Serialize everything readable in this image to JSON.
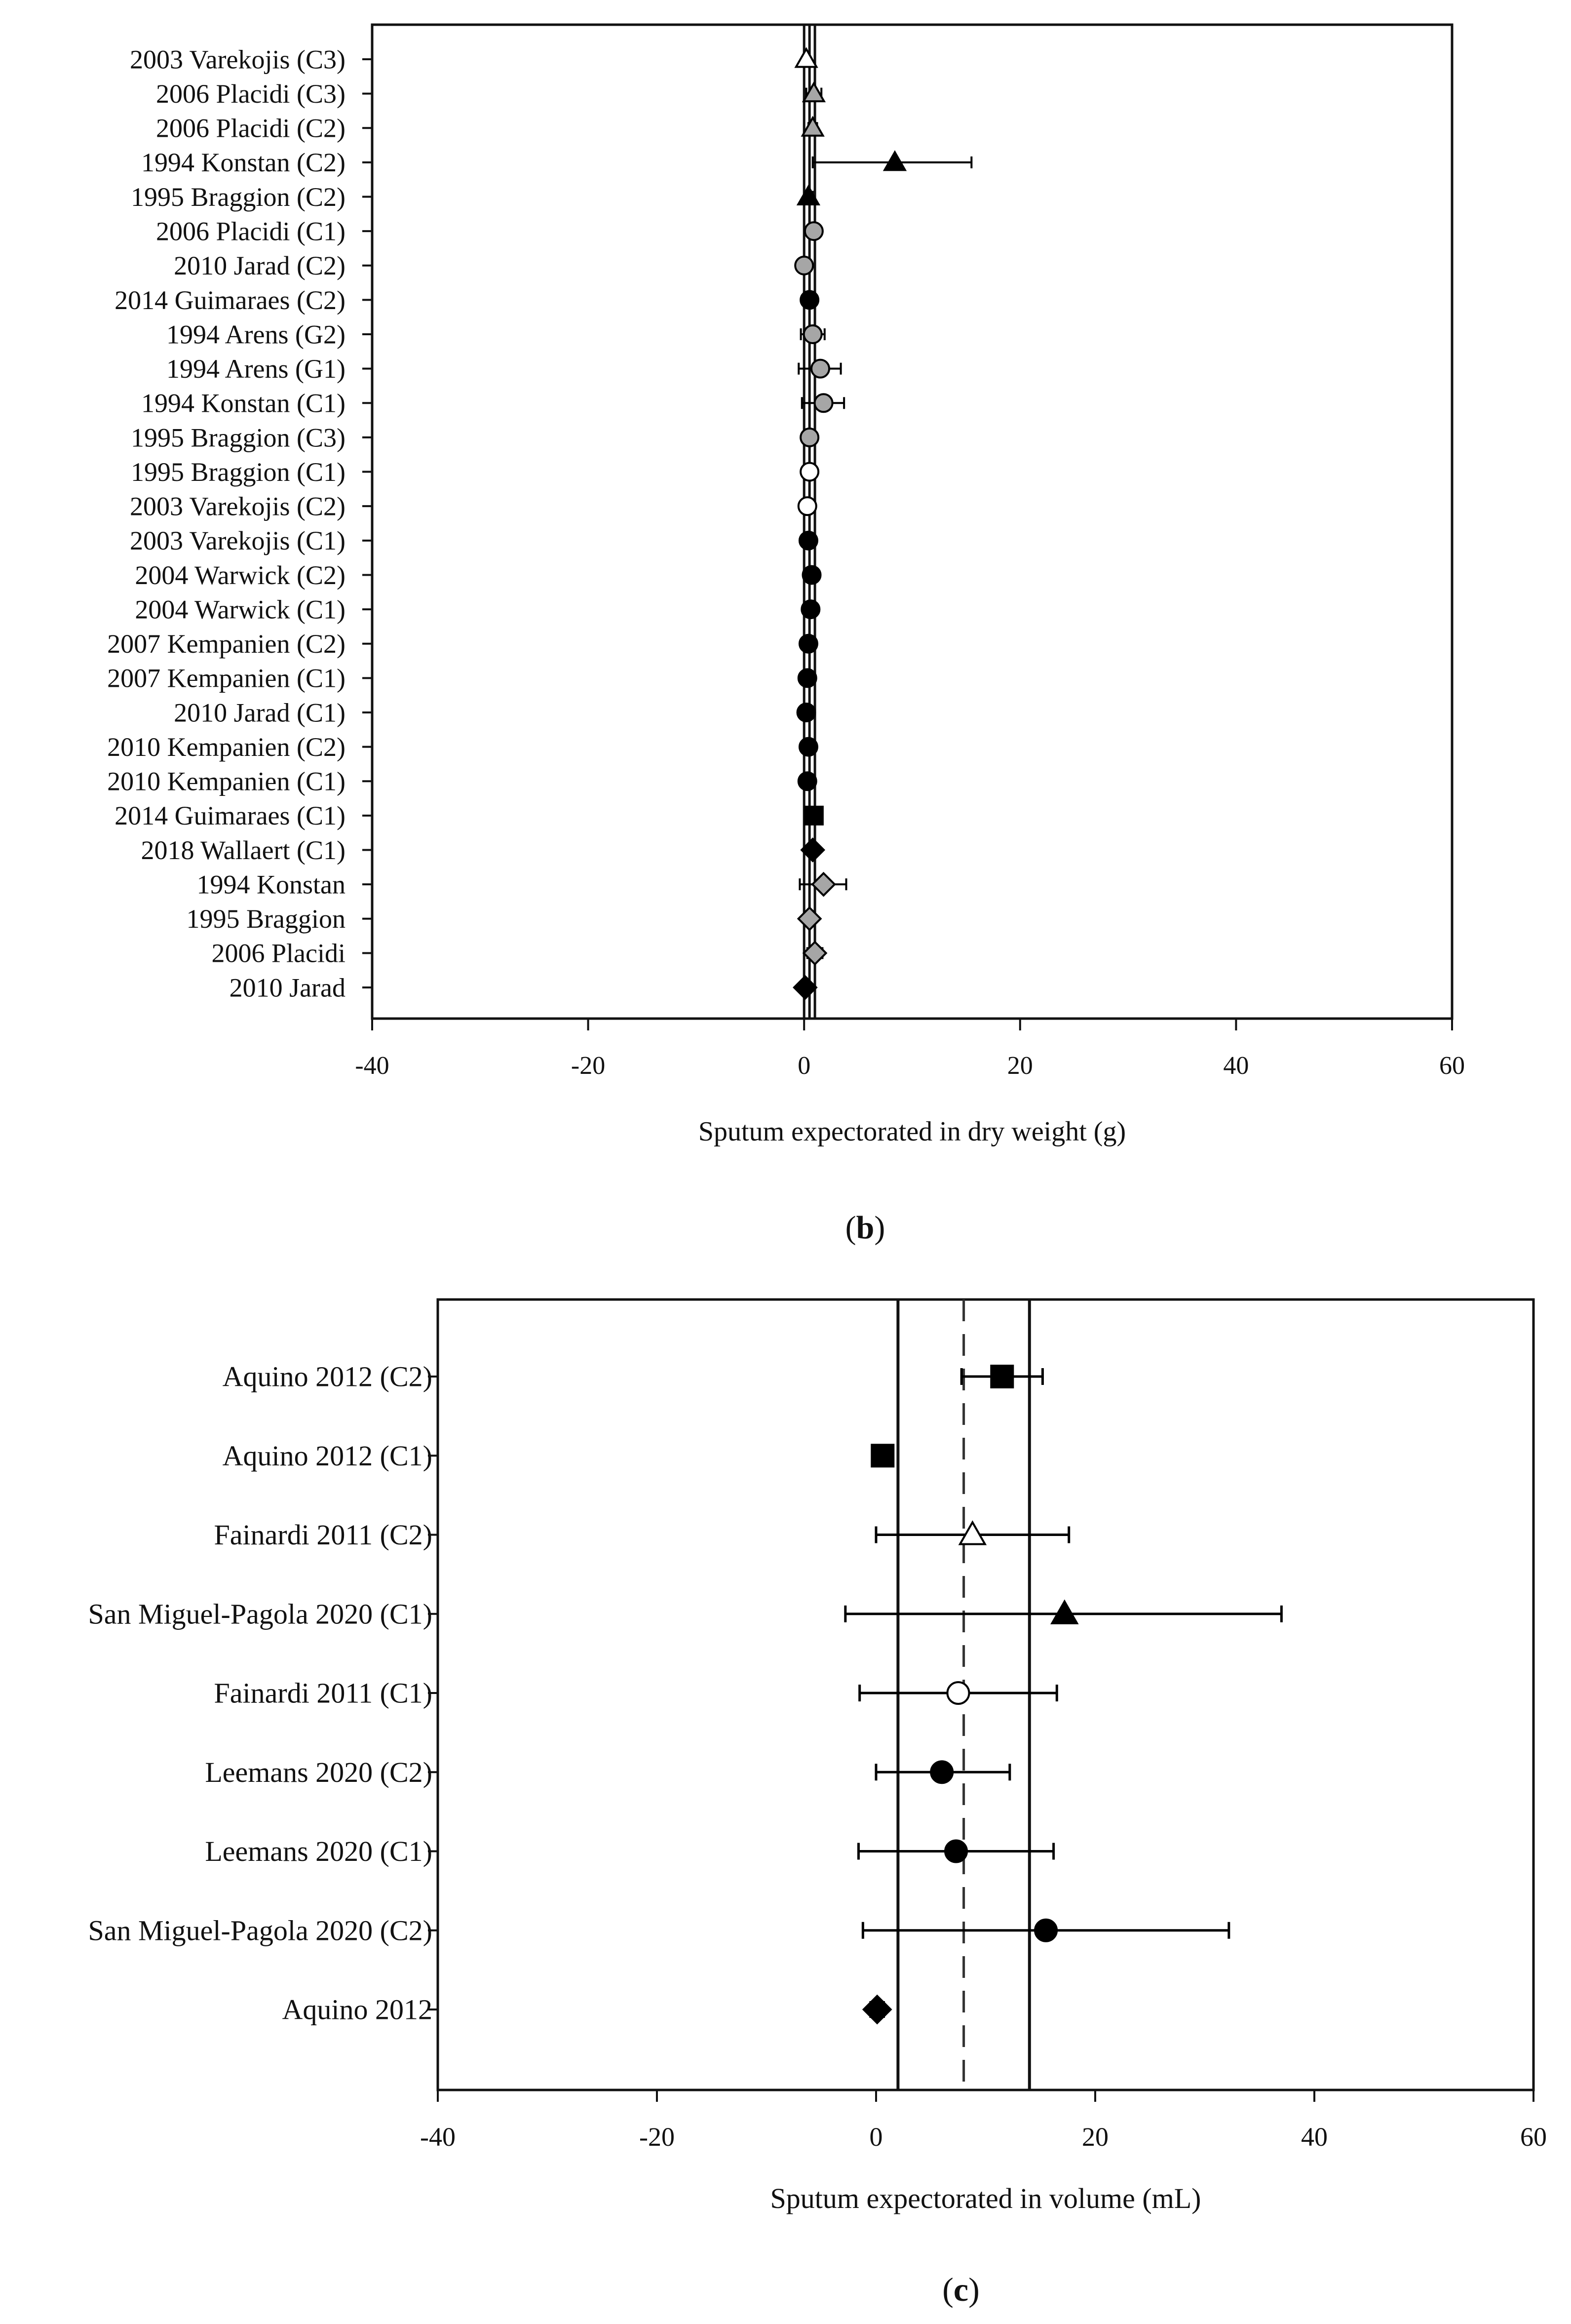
{
  "chart_data": [
    {
      "type": "forest",
      "panel": "(b)",
      "panel_letter": "b",
      "xlabel": "Sputum expectorated in dry weight (g)",
      "xlim": [
        -40,
        60
      ],
      "xticks": [
        -40,
        -20,
        0,
        20,
        40,
        60
      ],
      "reference_lines": {
        "solid": [
          0.0,
          0.5,
          1.0
        ]
      },
      "studies": [
        {
          "label": "2003 Varekojis (C3)",
          "value": 0.2,
          "ci": [
            0.0,
            0.5
          ],
          "marker": "triangle",
          "fill": "white"
        },
        {
          "label": "2006 Placidi (C3)",
          "value": 0.9,
          "ci": [
            0.2,
            1.6
          ],
          "marker": "triangle",
          "fill": "gray"
        },
        {
          "label": "2006 Placidi (C2)",
          "value": 0.8,
          "ci": [
            0.4,
            1.2
          ],
          "marker": "triangle",
          "fill": "gray"
        },
        {
          "label": "1994 Konstan (C2)",
          "value": 8.4,
          "ci": [
            0.8,
            15.5
          ],
          "marker": "triangle",
          "fill": "black"
        },
        {
          "label": "1995 Braggion (C2)",
          "value": 0.4,
          "ci": [
            0.1,
            0.8
          ],
          "marker": "triangle",
          "fill": "black"
        },
        {
          "label": "2006 Placidi (C1)",
          "value": 0.9,
          "ci": [
            0.3,
            1.5
          ],
          "marker": "circle",
          "fill": "gray"
        },
        {
          "label": "2010 Jarad (C2)",
          "value": 0.0,
          "ci": [
            -0.4,
            0.4
          ],
          "marker": "circle",
          "fill": "gray"
        },
        {
          "label": "2014 Guimaraes (C2)",
          "value": 0.5,
          "ci": [
            0.0,
            1.0
          ],
          "marker": "circle",
          "fill": "black"
        },
        {
          "label": "1994 Arens (G2)",
          "value": 0.8,
          "ci": [
            -0.3,
            1.9
          ],
          "marker": "circle",
          "fill": "gray"
        },
        {
          "label": "1994 Arens (G1)",
          "value": 1.5,
          "ci": [
            -0.5,
            3.4
          ],
          "marker": "circle",
          "fill": "gray"
        },
        {
          "label": "1994 Konstan (C1)",
          "value": 1.8,
          "ci": [
            -0.2,
            3.7
          ],
          "marker": "circle",
          "fill": "gray"
        },
        {
          "label": "1995 Braggion (C3)",
          "value": 0.5,
          "ci": [
            0.1,
            0.9
          ],
          "marker": "circle",
          "fill": "gray"
        },
        {
          "label": "1995 Braggion (C1)",
          "value": 0.5,
          "ci": [
            0.1,
            0.9
          ],
          "marker": "circle",
          "fill": "white"
        },
        {
          "label": "2003 Varekojis (C2)",
          "value": 0.3,
          "ci": [
            0.0,
            0.6
          ],
          "marker": "circle",
          "fill": "white"
        },
        {
          "label": "2003 Varekojis (C1)",
          "value": 0.4,
          "ci": [
            0.1,
            0.7
          ],
          "marker": "circle",
          "fill": "black"
        },
        {
          "label": "2004 Warwick (C2)",
          "value": 0.7,
          "ci": [
            0.3,
            1.1
          ],
          "marker": "circle",
          "fill": "black"
        },
        {
          "label": "2004 Warwick (C1)",
          "value": 0.6,
          "ci": [
            0.2,
            1.0
          ],
          "marker": "circle",
          "fill": "black"
        },
        {
          "label": "2007 Kempanien (C2)",
          "value": 0.4,
          "ci": [
            0.0,
            0.8
          ],
          "marker": "circle",
          "fill": "black"
        },
        {
          "label": "2007 Kempanien (C1)",
          "value": 0.3,
          "ci": [
            -0.1,
            0.7
          ],
          "marker": "circle",
          "fill": "black"
        },
        {
          "label": "2010 Jarad (C1)",
          "value": 0.2,
          "ci": [
            -0.2,
            0.6
          ],
          "marker": "circle",
          "fill": "black"
        },
        {
          "label": "2010 Kempanien (C2)",
          "value": 0.4,
          "ci": [
            0.0,
            0.8
          ],
          "marker": "circle",
          "fill": "black"
        },
        {
          "label": "2010 Kempanien (C1)",
          "value": 0.3,
          "ci": [
            -0.1,
            0.7
          ],
          "marker": "circle",
          "fill": "black"
        },
        {
          "label": "2014 Guimaraes (C1)",
          "value": 0.9,
          "ci": [
            0.2,
            1.6
          ],
          "marker": "square",
          "fill": "black"
        },
        {
          "label": "2018 Wallaert (C1)",
          "value": 0.8,
          "ci": [
            0.3,
            1.3
          ],
          "marker": "diamond",
          "fill": "black"
        },
        {
          "label": "1994 Konstan",
          "value": 1.8,
          "ci": [
            -0.4,
            3.9
          ],
          "marker": "diamond",
          "fill": "gray"
        },
        {
          "label": "1995 Braggion",
          "value": 0.5,
          "ci": [
            0.1,
            0.9
          ],
          "marker": "diamond",
          "fill": "gray"
        },
        {
          "label": "2006 Placidi",
          "value": 1.0,
          "ci": [
            0.3,
            1.7
          ],
          "marker": "diamond",
          "fill": "gray"
        },
        {
          "label": "2010 Jarad",
          "value": 0.1,
          "ci": [
            -0.3,
            0.5
          ],
          "marker": "diamond",
          "fill": "black"
        }
      ]
    },
    {
      "type": "forest",
      "panel": "(c)",
      "panel_letter": "c",
      "xlabel": "Sputum expectorated in volume (mL)",
      "xlim": [
        -40,
        60
      ],
      "xticks": [
        -40,
        -20,
        0,
        20,
        40,
        60
      ],
      "reference_lines": {
        "solid": [
          2.0,
          14.0
        ],
        "dashed": [
          8.0
        ]
      },
      "studies": [
        {
          "label": "Aquino 2012 (C2)",
          "value": 11.5,
          "ci": [
            7.8,
            15.2
          ],
          "marker": "square",
          "fill": "black"
        },
        {
          "label": "Aquino 2012 (C1)",
          "value": 0.6,
          "ci": [
            -0.3,
            1.4
          ],
          "marker": "square",
          "fill": "black"
        },
        {
          "label": "Fainardi 2011 (C2)",
          "value": 8.8,
          "ci": [
            0.0,
            17.6
          ],
          "marker": "triangle",
          "fill": "white"
        },
        {
          "label": "San Miguel-Pagola 2020 (C1)",
          "value": 17.2,
          "ci": [
            -2.8,
            37.0
          ],
          "marker": "triangle",
          "fill": "black"
        },
        {
          "label": "Fainardi 2011 (C1)",
          "value": 7.5,
          "ci": [
            -1.5,
            16.5
          ],
          "marker": "circle",
          "fill": "white"
        },
        {
          "label": "Leemans 2020 (C2)",
          "value": 6.0,
          "ci": [
            0.0,
            12.2
          ],
          "marker": "circle",
          "fill": "black"
        },
        {
          "label": "Leemans 2020 (C1)",
          "value": 7.3,
          "ci": [
            -1.6,
            16.2
          ],
          "marker": "circle",
          "fill": "black"
        },
        {
          "label": "San Miguel-Pagola 2020 (C2)",
          "value": 15.5,
          "ci": [
            -1.2,
            32.2
          ],
          "marker": "circle",
          "fill": "black"
        },
        {
          "label": "Aquino 2012",
          "value": 0.1,
          "ci": [
            -0.5,
            0.7
          ],
          "marker": "diamond",
          "fill": "black"
        }
      ]
    }
  ],
  "colors": {
    "black": "#000000",
    "gray": "#a6a6a6",
    "white": "#ffffff",
    "axis": "#111111"
  }
}
